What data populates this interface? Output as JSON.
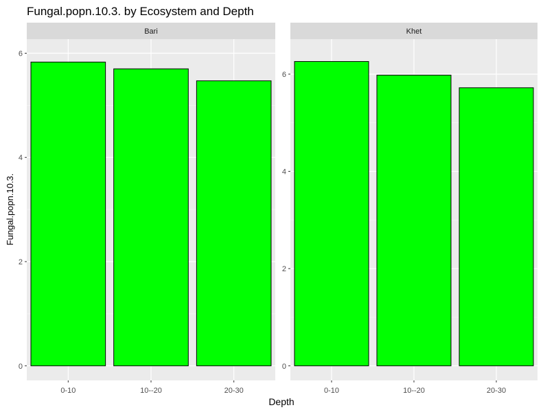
{
  "chart_data": {
    "type": "bar",
    "title": "Fungal.popn.10.3. by Ecosystem and Depth",
    "xlabel": "Depth",
    "ylabel": "Fungal.popn.10.3.",
    "categories": [
      "0-10",
      "10--20",
      "20-30"
    ],
    "grid": true,
    "bar_color": "#00ff00",
    "bar_outline": "#000000",
    "panel_background": "#ebebeb",
    "strip_background": "#d9d9d9",
    "panels": [
      {
        "name": "Bari",
        "values": [
          5.83,
          5.7,
          5.47
        ],
        "ylim": [
          -0.28,
          6.27
        ],
        "yticks": [
          0,
          2,
          4,
          6
        ]
      },
      {
        "name": "Khet",
        "values": [
          6.26,
          5.98,
          5.72
        ],
        "ylim": [
          -0.3,
          6.72
        ],
        "yticks": [
          0,
          2,
          4,
          6
        ]
      }
    ]
  }
}
